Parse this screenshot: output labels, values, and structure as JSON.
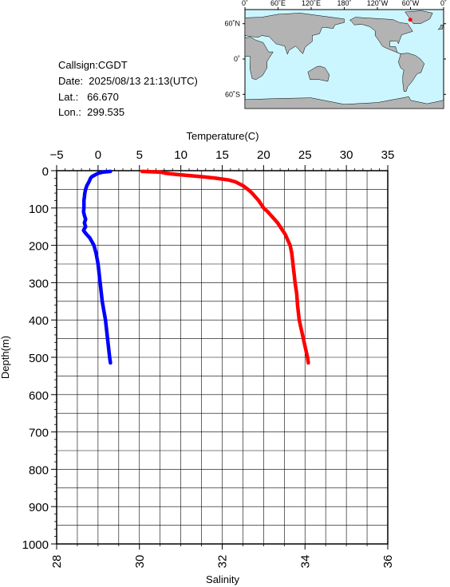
{
  "info": {
    "callsign_line": "Callsign:CGDT",
    "date_line": "Date:  2025/08/13 21:13(UTC)",
    "lat_line": "Lat.:   66.670",
    "lon_line": "Lon.:  299.535"
  },
  "map": {
    "lon_labels": [
      "0˚",
      "60˚E",
      "120˚E",
      "180˚",
      "120˚W",
      "60˚W",
      "0˚"
    ],
    "lat_labels": [
      "60˚N",
      "0˚",
      "60˚S"
    ],
    "ocean_color": "#ccf6ff",
    "land_color": "#b3b3b3",
    "marker_color": "#ff0000",
    "marker_lon": 299.535,
    "marker_lat": 66.67
  },
  "chart_data": {
    "type": "line",
    "top_axis_label": "Temperature(C)",
    "bottom_axis_label": "Salinity",
    "ylabel": "Depth(m)",
    "temperature_ticks": [
      "−5",
      "0",
      "5",
      "10",
      "15",
      "20",
      "25",
      "30",
      "35"
    ],
    "salinity_ticks": [
      "28",
      "30",
      "32",
      "34",
      "36"
    ],
    "depth_ticks": [
      "0",
      "100",
      "200",
      "300",
      "400",
      "500",
      "600",
      "700",
      "800",
      "900",
      "1000"
    ],
    "xlim_temperature": [
      -5,
      35
    ],
    "xlim_salinity": [
      28,
      36
    ],
    "ylim_depth": [
      0,
      1000
    ],
    "y_inverted": true,
    "grid": true,
    "series": [
      {
        "axis": "temperature",
        "color": "#ff0000",
        "depth": [
          2,
          4,
          7,
          10,
          13,
          16,
          20,
          25,
          30,
          40,
          50,
          60,
          70,
          80,
          90,
          100,
          110,
          120,
          130,
          140,
          150,
          160,
          170,
          180,
          190,
          200,
          220,
          240,
          260,
          280,
          300,
          330,
          360,
          400,
          430,
          460,
          480,
          500,
          515
        ],
        "values": [
          5.3,
          7.6,
          8.2,
          9.5,
          11.0,
          12.5,
          14.2,
          15.8,
          16.6,
          17.5,
          18.1,
          18.6,
          19.0,
          19.4,
          19.7,
          20.0,
          20.5,
          20.9,
          21.3,
          21.7,
          22.0,
          22.3,
          22.6,
          22.8,
          23.0,
          23.2,
          23.4,
          23.5,
          23.6,
          23.7,
          23.8,
          24.0,
          24.1,
          24.3,
          24.6,
          24.9,
          25.1,
          25.3,
          25.4
        ]
      },
      {
        "axis": "salinity",
        "color": "#0000ff",
        "depth": [
          2,
          4,
          7,
          10,
          13,
          16,
          20,
          30,
          40,
          50,
          60,
          70,
          80,
          90,
          100,
          110,
          120,
          130,
          140,
          150,
          160,
          165,
          170,
          180,
          190,
          200,
          220,
          250,
          300,
          350,
          400,
          450,
          500,
          515
        ],
        "values": [
          29.3,
          29.1,
          29.0,
          28.95,
          28.9,
          28.85,
          28.82,
          28.78,
          28.73,
          28.7,
          28.68,
          28.67,
          28.66,
          28.66,
          28.66,
          28.65,
          28.67,
          28.7,
          28.67,
          28.7,
          28.65,
          28.68,
          28.72,
          28.8,
          28.85,
          28.9,
          28.95,
          29.0,
          29.05,
          29.1,
          29.18,
          29.23,
          29.28,
          29.3
        ]
      }
    ]
  }
}
